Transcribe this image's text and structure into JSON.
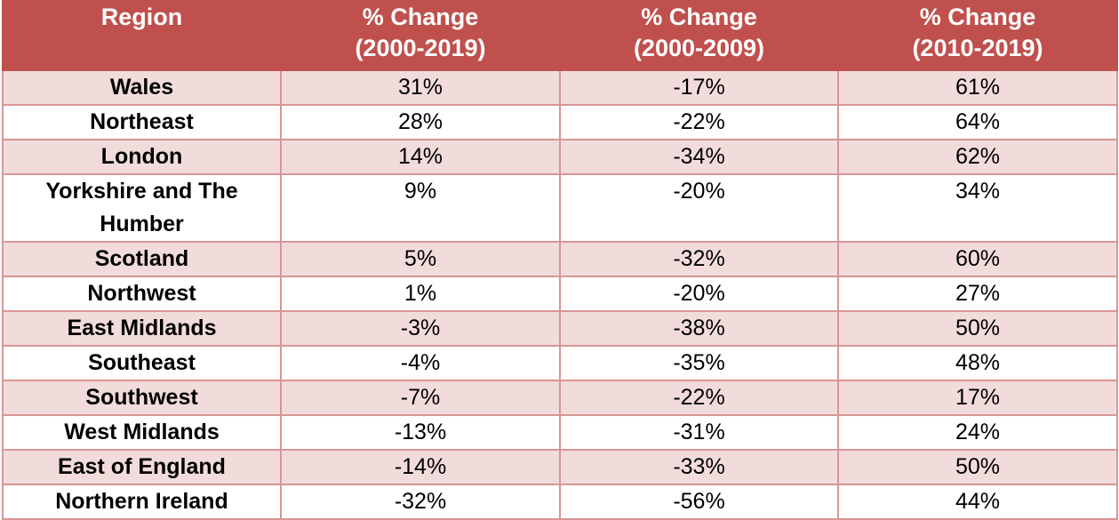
{
  "chart_data": {
    "type": "table",
    "columns": [
      "Region",
      "% Change\n(2000-2019)",
      "% Change\n(2000-2009)",
      "% Change\n(2010-2019)"
    ],
    "header_lines": [
      [
        "Region"
      ],
      [
        "% Change",
        "(2000-2019)"
      ],
      [
        "% Change",
        "(2000-2009)"
      ],
      [
        "% Change",
        "(2010-2019)"
      ]
    ],
    "rows": [
      [
        "Wales",
        "31%",
        "-17%",
        "61%"
      ],
      [
        "Northeast",
        "28%",
        "-22%",
        "64%"
      ],
      [
        "London",
        "14%",
        "-34%",
        "62%"
      ],
      [
        "Yorkshire and The Humber",
        "9%",
        "-20%",
        "34%"
      ],
      [
        "Scotland",
        "5%",
        "-32%",
        "60%"
      ],
      [
        "Northwest",
        "1%",
        "-20%",
        "27%"
      ],
      [
        "East Midlands",
        "-3%",
        "-38%",
        "50%"
      ],
      [
        "Southeast",
        "-4%",
        "-35%",
        "48%"
      ],
      [
        "Southwest",
        "-7%",
        "-22%",
        "17%"
      ],
      [
        "West Midlands",
        "-13%",
        "-31%",
        "24%"
      ],
      [
        "East of England",
        "-14%",
        "-33%",
        "50%"
      ],
      [
        "Northern Ireland",
        "-32%",
        "-56%",
        "44%"
      ]
    ],
    "colors": {
      "header_bg": "#c0504d",
      "header_text": "#ffffff",
      "band_bg": "#f2dcdb",
      "plain_bg": "#ffffff",
      "border": "#d99594"
    }
  }
}
